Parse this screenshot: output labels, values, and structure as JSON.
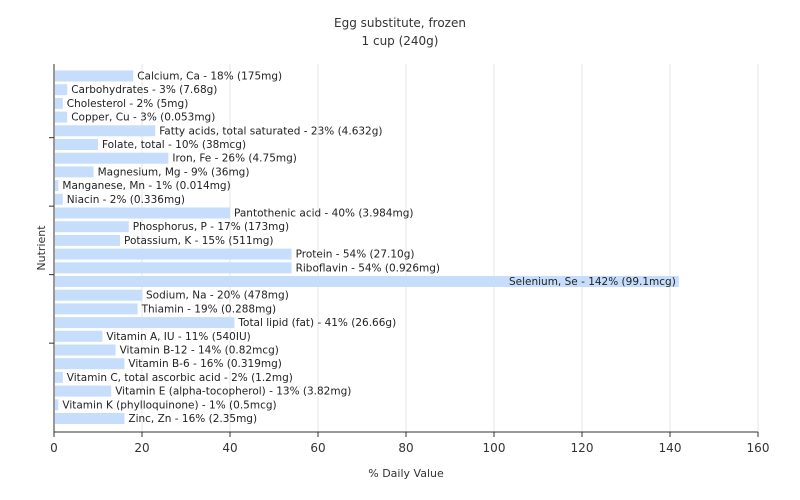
{
  "chart_data": {
    "type": "bar",
    "orientation": "horizontal",
    "title": "Egg substitute, frozen",
    "subtitle": "1 cup (240g)",
    "xlabel": "% Daily Value",
    "ylabel": "Nutrient",
    "xlim": [
      0,
      160
    ],
    "xticks": [
      0,
      20,
      40,
      60,
      80,
      100,
      120,
      140,
      160
    ],
    "grid": true,
    "bar_color": "#c6defc",
    "categories": [
      "Calcium, Ca",
      "Carbohydrates",
      "Cholesterol",
      "Copper, Cu",
      "Fatty acids, total saturated",
      "Folate, total",
      "Iron, Fe",
      "Magnesium, Mg",
      "Manganese, Mn",
      "Niacin",
      "Pantothenic acid",
      "Phosphorus, P",
      "Potassium, K",
      "Protein",
      "Riboflavin",
      "Selenium, Se",
      "Sodium, Na",
      "Thiamin",
      "Total lipid (fat)",
      "Vitamin A, IU",
      "Vitamin B-12",
      "Vitamin B-6",
      "Vitamin C, total ascorbic acid",
      "Vitamin E (alpha-tocopherol)",
      "Vitamin K (phylloquinone)",
      "Zinc, Zn"
    ],
    "values": [
      18,
      3,
      2,
      3,
      23,
      10,
      26,
      9,
      1,
      2,
      40,
      17,
      15,
      54,
      54,
      142,
      20,
      19,
      41,
      11,
      14,
      16,
      2,
      13,
      1,
      16
    ],
    "labels": [
      "Calcium, Ca - 18% (175mg)",
      "Carbohydrates - 3% (7.68g)",
      "Cholesterol - 2% (5mg)",
      "Copper, Cu - 3% (0.053mg)",
      "Fatty acids, total saturated - 23% (4.632g)",
      "Folate, total - 10% (38mcg)",
      "Iron, Fe - 26% (4.75mg)",
      "Magnesium, Mg - 9% (36mg)",
      "Manganese, Mn - 1% (0.014mg)",
      "Niacin - 2% (0.336mg)",
      "Pantothenic acid - 40% (3.984mg)",
      "Phosphorus, P - 17% (173mg)",
      "Potassium, K - 15% (511mg)",
      "Protein - 54% (27.10g)",
      "Riboflavin - 54% (0.926mg)",
      "Selenium, Se - 142% (99.1mcg)",
      "Sodium, Na - 20% (478mg)",
      "Thiamin - 19% (0.288mg)",
      "Total lipid (fat) - 41% (26.66g)",
      "Vitamin A, IU - 11% (540IU)",
      "Vitamin B-12 - 14% (0.82mcg)",
      "Vitamin B-6 - 16% (0.319mg)",
      "Vitamin C, total ascorbic acid - 2% (1.2mg)",
      "Vitamin E (alpha-tocopherol) - 13% (3.82mg)",
      "Vitamin K (phylloquinone) - 1% (0.5mcg)",
      "Zinc, Zn - 16% (2.35mg)"
    ]
  }
}
